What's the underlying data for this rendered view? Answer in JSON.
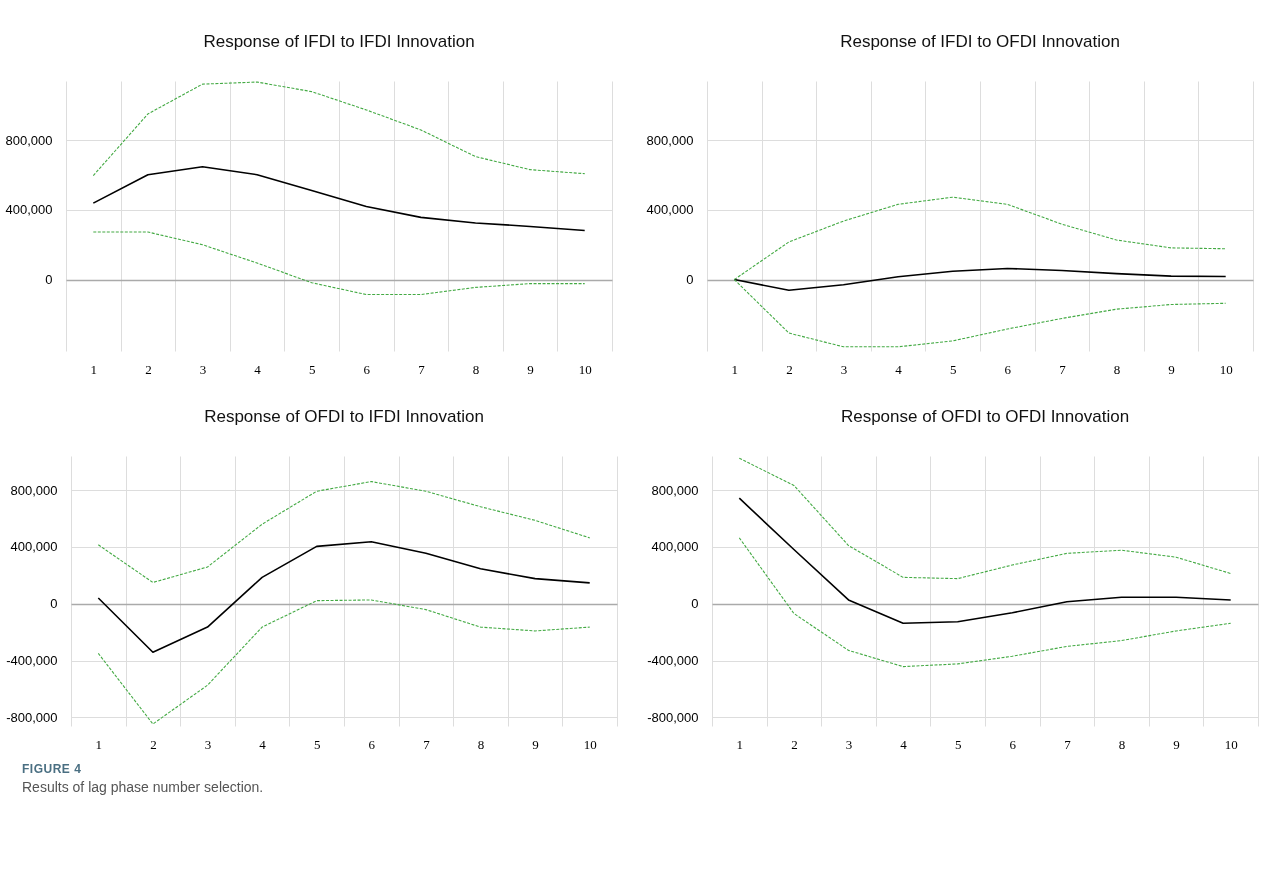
{
  "chart_data": [
    {
      "type": "line",
      "title": "Response of IFDI to IFDI Innovation",
      "categories": [
        "1",
        "2",
        "3",
        "4",
        "5",
        "6",
        "7",
        "8",
        "9",
        "10"
      ],
      "ylim": [
        -410000,
        1140000
      ],
      "yticks": [
        {
          "value": 0,
          "label": "0"
        },
        {
          "value": 400000,
          "label": "400,000"
        },
        {
          "value": 800000,
          "label": "800,000"
        }
      ],
      "grid": true,
      "series": [
        {
          "color": "#000000",
          "line_style": "solid",
          "values": [
            439000,
            602000,
            648000,
            602000,
            511000,
            420000,
            357000,
            325000,
            305000,
            282000
          ]
        },
        {
          "color": "#44aa44",
          "line_style": "dashed",
          "values": [
            597000,
            951000,
            1122000,
            1134000,
            1079000,
            974000,
            859000,
            706000,
            631000,
            608000
          ]
        },
        {
          "color": "#44aa44",
          "line_style": "dashed",
          "values": [
            273000,
            273000,
            200000,
            95000,
            -18000,
            -86000,
            -86000,
            -45000,
            -23000,
            -23000
          ]
        }
      ]
    },
    {
      "type": "line",
      "title": "Response of IFDI to OFDI Innovation",
      "categories": [
        "1",
        "2",
        "3",
        "4",
        "5",
        "6",
        "7",
        "8",
        "9",
        "10"
      ],
      "ylim": [
        -410000,
        1140000
      ],
      "yticks": [
        {
          "value": 0,
          "label": "0"
        },
        {
          "value": 400000,
          "label": "400,000"
        },
        {
          "value": 800000,
          "label": "800,000"
        }
      ],
      "grid": true,
      "series": [
        {
          "color": "#000000",
          "line_style": "solid",
          "values": [
            0,
            -61000,
            -30000,
            16000,
            48000,
            64000,
            52000,
            34000,
            20000,
            18000
          ]
        },
        {
          "color": "#44aa44",
          "line_style": "dashed",
          "values": [
            0,
            216000,
            336000,
            432000,
            473000,
            432000,
            318000,
            227000,
            182000,
            177000
          ]
        },
        {
          "color": "#44aa44",
          "line_style": "dashed",
          "values": [
            0,
            -307000,
            -386000,
            -386000,
            -352000,
            -284000,
            -223000,
            -170000,
            -143000,
            -136000
          ]
        }
      ]
    },
    {
      "type": "line",
      "title": "Response of OFDI to IFDI Innovation",
      "categories": [
        "1",
        "2",
        "3",
        "4",
        "5",
        "6",
        "7",
        "8",
        "9",
        "10"
      ],
      "ylim": [
        -860000,
        1040000
      ],
      "yticks": [
        {
          "value": -800000,
          "label": "-800,000"
        },
        {
          "value": -400000,
          "label": "-400,000"
        },
        {
          "value": 0,
          "label": "0"
        },
        {
          "value": 400000,
          "label": "400,000"
        },
        {
          "value": 800000,
          "label": "800,000"
        }
      ],
      "grid": true,
      "series": [
        {
          "color": "#000000",
          "line_style": "solid",
          "values": [
            41000,
            -341000,
            -164000,
            186000,
            404000,
            437000,
            355000,
            246000,
            177000,
            147000
          ]
        },
        {
          "color": "#44aa44",
          "line_style": "dashed",
          "values": [
            415000,
            150000,
            259000,
            560000,
            792000,
            860000,
            792000,
            683000,
            587000,
            464000
          ]
        },
        {
          "color": "#44aa44",
          "line_style": "dashed",
          "values": [
            -349000,
            -846000,
            -573000,
            -164000,
            22000,
            27000,
            -41000,
            -164000,
            -191000,
            -164000
          ]
        }
      ]
    },
    {
      "type": "line",
      "title": "Response of OFDI to OFDI Innovation",
      "categories": [
        "1",
        "2",
        "3",
        "4",
        "5",
        "6",
        "7",
        "8",
        "9",
        "10"
      ],
      "ylim": [
        -860000,
        1040000
      ],
      "yticks": [
        {
          "value": -800000,
          "label": "-800,000"
        },
        {
          "value": -400000,
          "label": "-400,000"
        },
        {
          "value": 0,
          "label": "0"
        },
        {
          "value": 400000,
          "label": "400,000"
        },
        {
          "value": 800000,
          "label": "800,000"
        }
      ],
      "grid": true,
      "annotations": [
        "FIGURE 4",
        "Results of lag phase number selection."
      ],
      "series": [
        {
          "color": "#000000",
          "line_style": "solid",
          "values": [
            743000,
            382000,
            27000,
            -137000,
            -126000,
            -63000,
            14000,
            46000,
            46000,
            27000
          ]
        },
        {
          "color": "#44aa44",
          "line_style": "dashed",
          "values": [
            1024000,
            833000,
            410000,
            186000,
            177000,
            273000,
            355000,
            377000,
            328000,
            213000
          ]
        },
        {
          "color": "#44aa44",
          "line_style": "dashed",
          "values": [
            464000,
            -68000,
            -328000,
            -442000,
            -423000,
            -369000,
            -300000,
            -259000,
            -191000,
            -137000
          ]
        }
      ]
    }
  ]
}
